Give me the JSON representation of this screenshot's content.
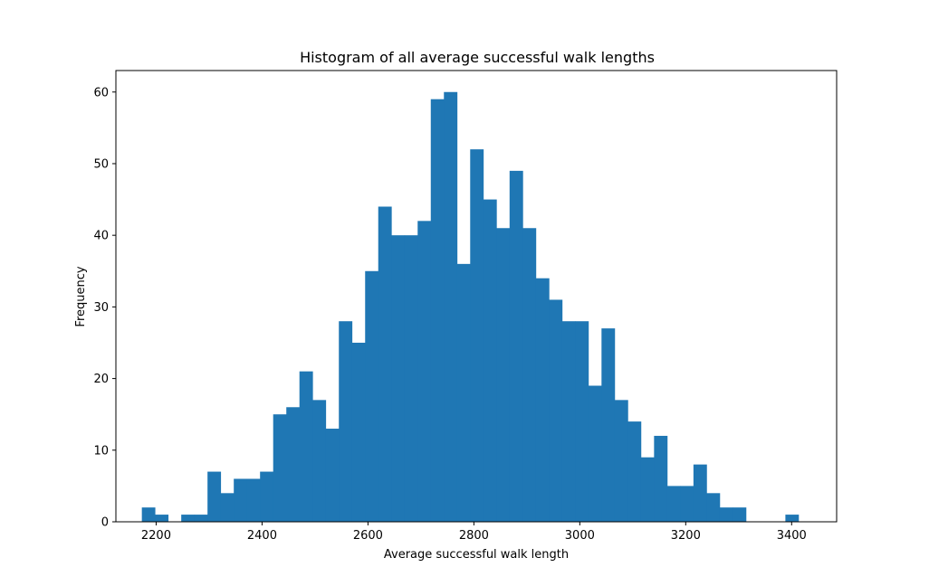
{
  "chart_data": {
    "type": "bar",
    "title": "Histogram of all average successful walk lengths",
    "xlabel": "Average successful walk length",
    "ylabel": "Frequency",
    "xlim": [
      2124,
      3485
    ],
    "ylim": [
      0,
      63
    ],
    "grid": false,
    "legend": "none",
    "bar_color": "#1f77b4",
    "bin_start": 2173,
    "bin_width": 24.8,
    "x_ticks": [
      2200,
      2400,
      2600,
      2800,
      3000,
      3200,
      3400
    ],
    "x_tick_labels": [
      "2200",
      "2400",
      "2600",
      "2800",
      "3000",
      "3200",
      "3400"
    ],
    "y_ticks": [
      0,
      10,
      20,
      30,
      40,
      50,
      60
    ],
    "y_tick_labels": [
      "0",
      "10",
      "20",
      "30",
      "40",
      "50",
      "60"
    ],
    "values": [
      2,
      1,
      0,
      1,
      1,
      7,
      4,
      6,
      6,
      7,
      15,
      16,
      21,
      17,
      13,
      28,
      25,
      35,
      44,
      40,
      40,
      42,
      59,
      60,
      36,
      52,
      45,
      41,
      49,
      41,
      34,
      31,
      28,
      28,
      19,
      27,
      17,
      14,
      9,
      12,
      5,
      5,
      8,
      4,
      2,
      2,
      0,
      0,
      0,
      1
    ]
  }
}
